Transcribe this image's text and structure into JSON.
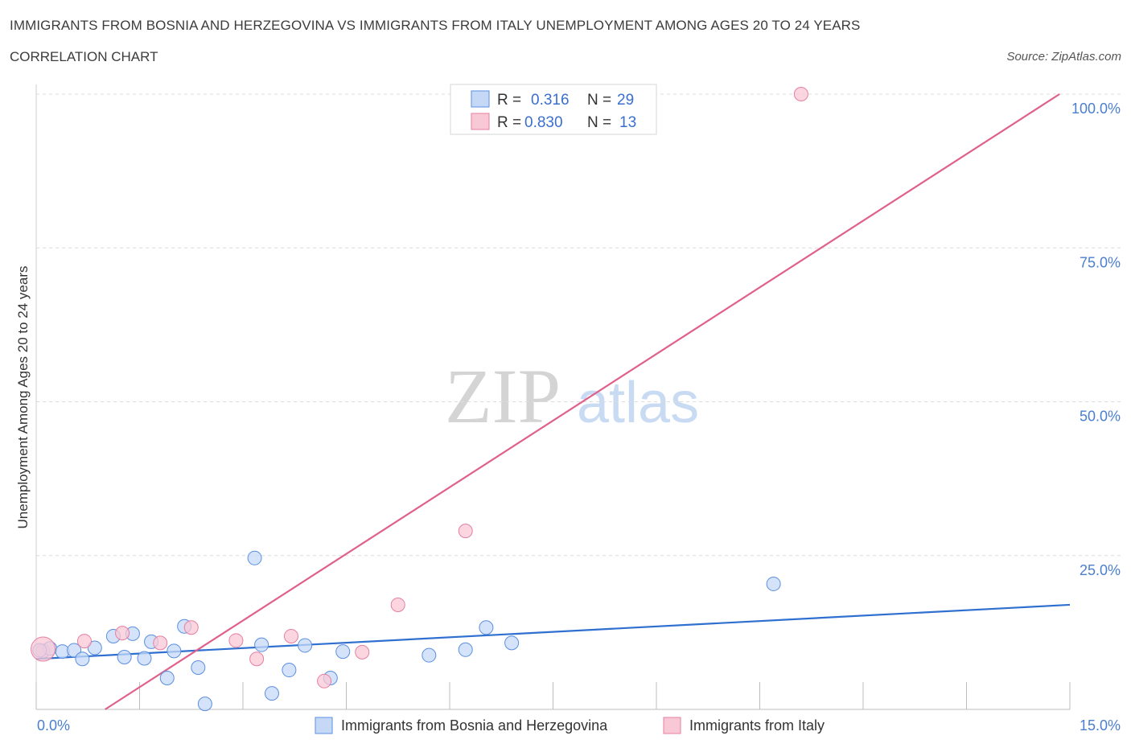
{
  "title": "IMMIGRANTS FROM BOSNIA AND HERZEGOVINA VS IMMIGRANTS FROM ITALY UNEMPLOYMENT AMONG AGES 20 TO 24 YEARS",
  "subtitle": "CORRELATION CHART",
  "source": "Source: ZipAtlas.com",
  "watermark": {
    "zip": "ZIP",
    "atlas": "atlas"
  },
  "chart_data": {
    "type": "scatter",
    "xlabel": "",
    "ylabel": "Unemployment Among Ages 20 to 24 years",
    "xlim": [
      0,
      15
    ],
    "ylim": [
      0,
      100
    ],
    "x_tick_labels": [
      "0.0%",
      "15.0%"
    ],
    "y_ticks": [
      25,
      50,
      75,
      100
    ],
    "y_tick_labels": [
      "25.0%",
      "50.0%",
      "75.0%",
      "100.0%"
    ],
    "grid": true,
    "legend": {
      "placement": "top-center",
      "entries": [
        {
          "r_label": "R =",
          "r_value": "0.316",
          "n_label": "N =",
          "n_value": "29"
        },
        {
          "r_label": "R =",
          "r_value": "0.830",
          "n_label": "N =",
          "n_value": "13"
        }
      ]
    },
    "series": [
      {
        "name": "Immigrants from Bosnia and Herzegovina",
        "color": "#5b8fe0",
        "fill": "#c5d9f7",
        "trend": {
          "x0": 0.0,
          "y0": 8.2,
          "x1": 15.0,
          "y1": 17.0,
          "color": "#2f6fd0"
        },
        "points": [
          {
            "x": 0.1,
            "y": 9.5
          },
          {
            "x": 0.2,
            "y": 9.9
          },
          {
            "x": 0.38,
            "y": 9.4
          },
          {
            "x": 0.55,
            "y": 9.6
          },
          {
            "x": 0.67,
            "y": 8.2
          },
          {
            "x": 0.85,
            "y": 10.0
          },
          {
            "x": 1.12,
            "y": 11.9
          },
          {
            "x": 1.28,
            "y": 8.5
          },
          {
            "x": 1.4,
            "y": 12.3
          },
          {
            "x": 1.57,
            "y": 8.3
          },
          {
            "x": 1.67,
            "y": 11.0
          },
          {
            "x": 1.9,
            "y": 5.1
          },
          {
            "x": 2.0,
            "y": 9.5
          },
          {
            "x": 2.15,
            "y": 13.5
          },
          {
            "x": 2.35,
            "y": 6.8
          },
          {
            "x": 2.45,
            "y": 0.9
          },
          {
            "x": 3.17,
            "y": 24.6
          },
          {
            "x": 3.27,
            "y": 10.5
          },
          {
            "x": 3.42,
            "y": 2.6
          },
          {
            "x": 3.67,
            "y": 6.4
          },
          {
            "x": 3.9,
            "y": 10.4
          },
          {
            "x": 4.27,
            "y": 5.1
          },
          {
            "x": 4.45,
            "y": 9.4
          },
          {
            "x": 5.7,
            "y": 8.8
          },
          {
            "x": 6.23,
            "y": 9.7
          },
          {
            "x": 6.53,
            "y": 13.3
          },
          {
            "x": 6.9,
            "y": 10.8
          },
          {
            "x": 10.7,
            "y": 20.4
          },
          {
            "x": 0.05,
            "y": 9.6
          }
        ]
      },
      {
        "name": "Immigrants from Italy",
        "color": "#e57fa0",
        "fill": "#f9c8d6",
        "trend": {
          "x0": 1.0,
          "y0": 0.0,
          "x1": 14.85,
          "y1": 100.0,
          "color": "#e0608c"
        },
        "points": [
          {
            "x": 0.1,
            "y": 9.8
          },
          {
            "x": 0.7,
            "y": 11.1
          },
          {
            "x": 1.25,
            "y": 12.4
          },
          {
            "x": 1.8,
            "y": 10.8
          },
          {
            "x": 2.25,
            "y": 13.3
          },
          {
            "x": 2.9,
            "y": 11.2
          },
          {
            "x": 3.2,
            "y": 8.2
          },
          {
            "x": 3.7,
            "y": 11.9
          },
          {
            "x": 4.18,
            "y": 4.6
          },
          {
            "x": 4.73,
            "y": 9.3
          },
          {
            "x": 5.25,
            "y": 17.0
          },
          {
            "x": 6.23,
            "y": 29.0
          },
          {
            "x": 11.1,
            "y": 100.0
          }
        ]
      }
    ]
  }
}
